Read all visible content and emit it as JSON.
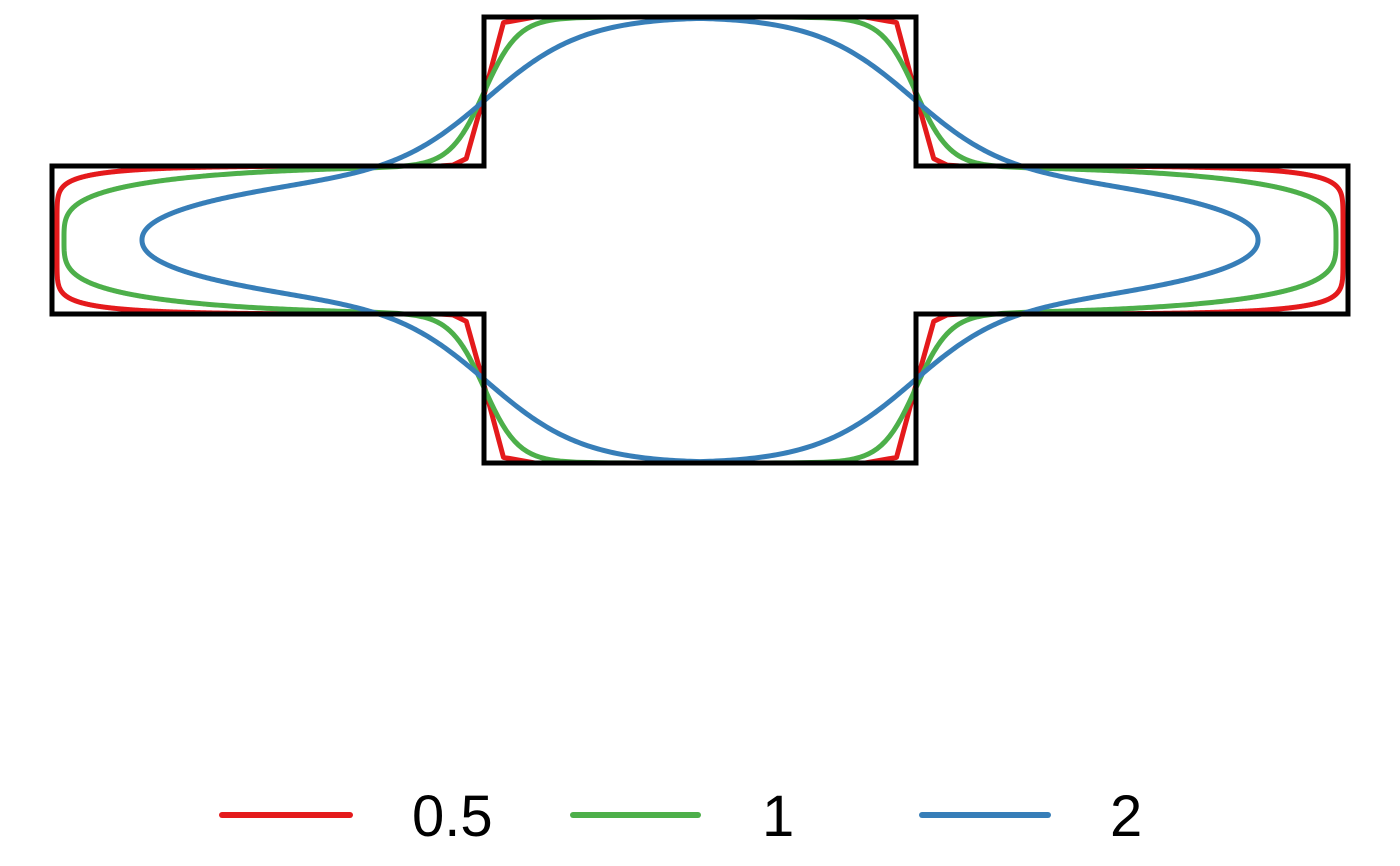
{
  "diagram": {
    "outline_color": "#000000",
    "series": [
      {
        "name": "0.5",
        "color": "#E41A1C"
      },
      {
        "name": "1",
        "color": "#4DAF4A"
      },
      {
        "name": "2",
        "color": "#377EB8"
      }
    ]
  }
}
